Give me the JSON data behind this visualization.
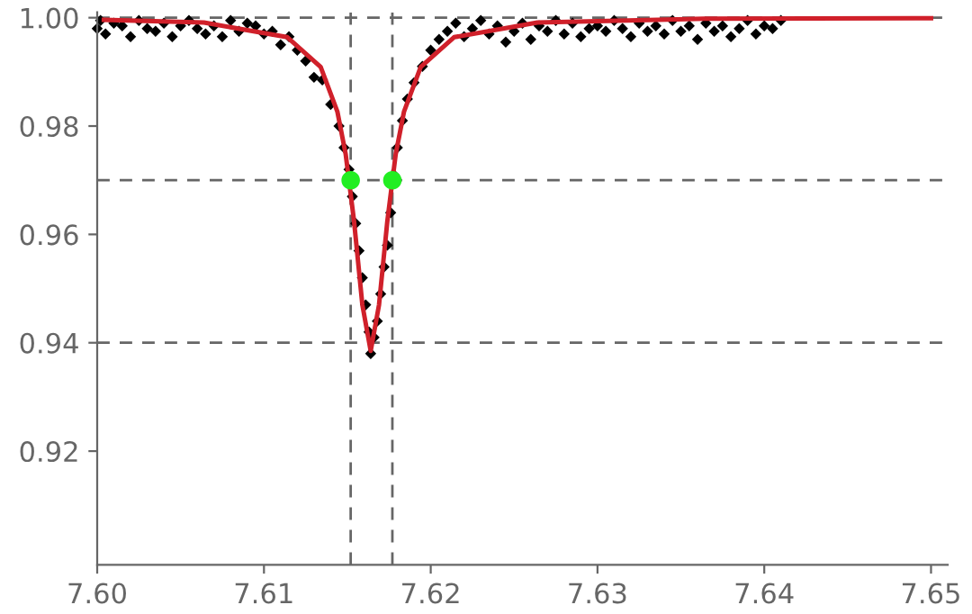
{
  "chart_data": {
    "type": "scatter",
    "xlim": [
      7.6,
      7.651
    ],
    "ylim": [
      0.899,
      1.001
    ],
    "xticks": [
      {
        "value": 7.6,
        "label": "7.60"
      },
      7.61,
      7.62,
      7.63,
      7.64,
      7.65
    ],
    "yticks": [
      0.92,
      0.94,
      0.96,
      0.98,
      {
        "value": 1.0,
        "label": "1.00"
      }
    ],
    "grid": false,
    "legend": false,
    "series": [
      {
        "color": "#000000",
        "marker": "diamond",
        "x": [
          7.6,
          7.6002,
          7.6005,
          7.601,
          7.6015,
          7.602,
          7.6025,
          7.603,
          7.6035,
          7.604,
          7.6045,
          7.605,
          7.6055,
          7.606,
          7.6065,
          7.607,
          7.6075,
          7.608,
          7.6085,
          7.609,
          7.6095,
          7.61,
          7.6105,
          7.611,
          7.6115,
          7.612,
          7.6125,
          7.613,
          7.6135,
          7.614,
          7.6145,
          7.6148,
          7.6151,
          7.6153,
          7.6155,
          7.6157,
          7.6159,
          7.6161,
          7.6163,
          7.6164,
          7.6166,
          7.6168,
          7.617,
          7.6172,
          7.6174,
          7.6176,
          7.6178,
          7.618,
          7.6183,
          7.6186,
          7.619,
          7.6195,
          7.62,
          7.6205,
          7.621,
          7.6215,
          7.622,
          7.6225,
          7.623,
          7.6235,
          7.624,
          7.6245,
          7.625,
          7.6255,
          7.626,
          7.6265,
          7.627,
          7.6275,
          7.628,
          7.6285,
          7.629,
          7.6295,
          7.63,
          7.6305,
          7.631,
          7.6315,
          7.632,
          7.6325,
          7.633,
          7.6335,
          7.634,
          7.6345,
          7.635,
          7.6355,
          7.636,
          7.6365,
          7.637,
          7.6375,
          7.638,
          7.6385,
          7.639,
          7.6395,
          7.64,
          7.6405,
          7.641
        ],
        "values": [
          0.998,
          0.9995,
          0.997,
          0.999,
          0.9985,
          0.9965,
          0.9995,
          0.998,
          0.9975,
          0.999,
          0.9965,
          0.9985,
          0.9995,
          0.998,
          0.997,
          0.9985,
          0.9965,
          0.9995,
          0.9975,
          0.999,
          0.9985,
          0.997,
          0.9975,
          0.995,
          0.9965,
          0.994,
          0.992,
          0.989,
          0.9885,
          0.984,
          0.98,
          0.976,
          0.972,
          0.967,
          0.962,
          0.957,
          0.952,
          0.947,
          0.942,
          0.938,
          0.941,
          0.944,
          0.949,
          0.954,
          0.958,
          0.964,
          0.971,
          0.976,
          0.981,
          0.985,
          0.988,
          0.991,
          0.994,
          0.996,
          0.9975,
          0.999,
          0.9965,
          0.998,
          0.9995,
          0.997,
          0.9985,
          0.9955,
          0.9975,
          0.999,
          0.996,
          0.9985,
          0.9975,
          0.9995,
          0.997,
          0.999,
          0.9965,
          0.998,
          0.9985,
          0.9975,
          0.9995,
          0.998,
          0.9965,
          0.999,
          0.9975,
          0.9985,
          0.997,
          0.9995,
          0.9975,
          0.9985,
          0.996,
          0.999,
          0.9975,
          0.9985,
          0.9965,
          0.998,
          0.9995,
          0.997,
          0.9985,
          0.998,
          0.9995
        ]
      },
      {
        "type": "line",
        "color": "#d0202a",
        "line_style": "solid",
        "x": [
          7.6004,
          7.6064,
          7.6114,
          7.6134,
          7.6144,
          7.6149,
          7.6154,
          7.6159,
          7.6164,
          7.6169,
          7.6174,
          7.6179,
          7.6184,
          7.6194,
          7.6214,
          7.6264,
          7.6364,
          7.65
        ],
        "values": [
          0.9996,
          0.9991,
          0.9964,
          0.9909,
          0.9827,
          0.9748,
          0.9625,
          0.947,
          0.9385,
          0.947,
          0.9625,
          0.9748,
          0.9827,
          0.9909,
          0.9964,
          0.9991,
          0.9998,
          0.9999
        ]
      },
      {
        "type": "scatter",
        "color": "#22ee22",
        "marker": "circle",
        "x": [
          7.6152,
          7.6177
        ],
        "values": [
          0.97,
          0.97
        ]
      }
    ],
    "ref_lines": [
      {
        "axis": "y",
        "value": 1.0,
        "color": "#666666",
        "line_style": "dashed"
      },
      {
        "axis": "y",
        "value": 0.97,
        "color": "#666666",
        "line_style": "dashed"
      },
      {
        "axis": "y",
        "value": 0.94,
        "color": "#666666",
        "line_style": "dashed"
      },
      {
        "axis": "x",
        "value": 7.6152,
        "color": "#666666",
        "line_style": "dashed"
      },
      {
        "axis": "x",
        "value": 7.6177,
        "color": "#666666",
        "line_style": "dashed"
      }
    ]
  }
}
